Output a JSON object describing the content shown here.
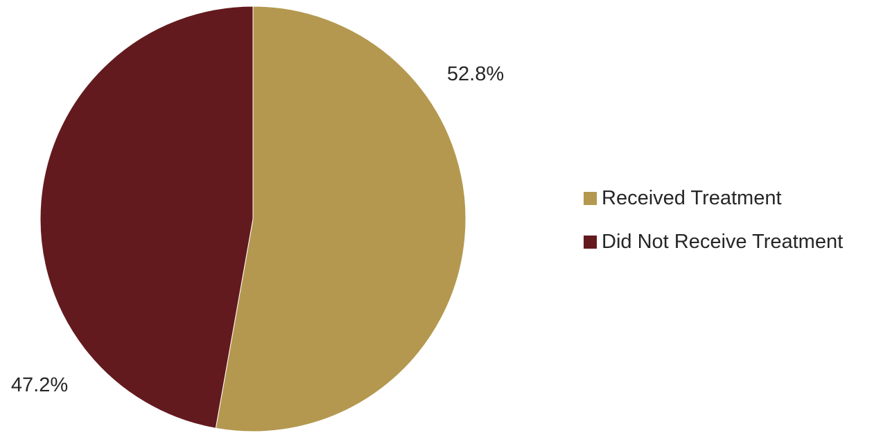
{
  "chart_data": {
    "type": "pie",
    "categories": [
      "Received Treatment",
      "Did Not Receive Treatment"
    ],
    "values": [
      52.8,
      47.2
    ],
    "data_labels": [
      "52.8%",
      "47.2%"
    ],
    "colors": [
      "#B4984F",
      "#631A1E"
    ],
    "start_angle_deg": 0,
    "direction": "clockwise",
    "legend": {
      "placement": "right",
      "entries": [
        "Received Treatment",
        "Did Not Receive Treatment"
      ]
    }
  }
}
